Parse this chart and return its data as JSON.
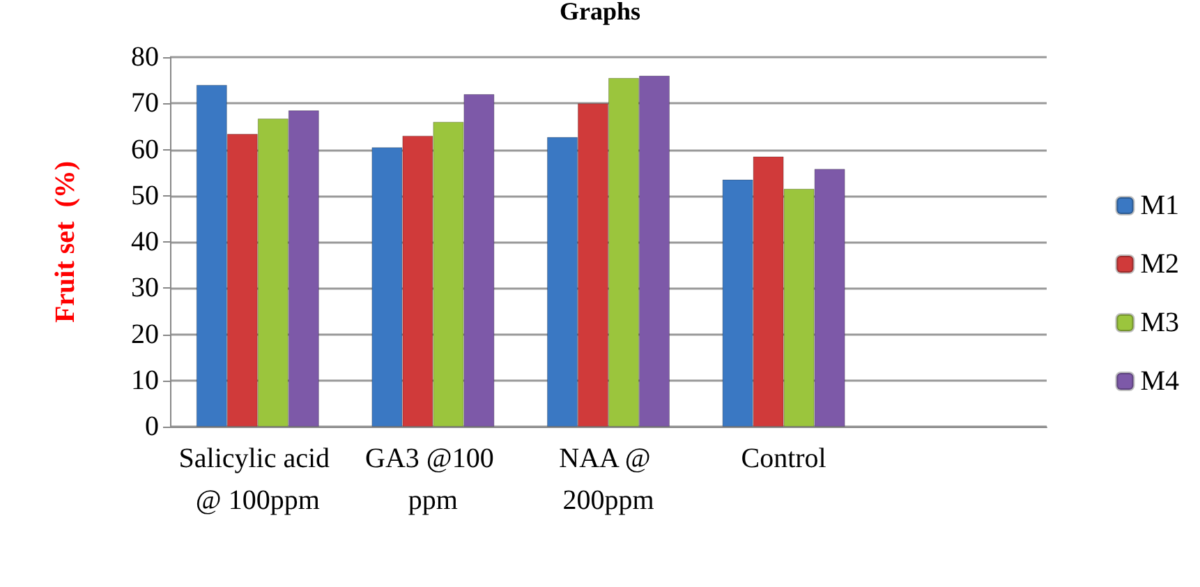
{
  "chart_data": {
    "type": "bar",
    "title": "Graphs",
    "ylabel": "Fruit set  (%)",
    "categories": [
      "Salicylic acid @ 100ppm",
      "GA3 @100 ppm",
      "NAA @ 200ppm",
      "Control",
      null
    ],
    "series": [
      {
        "name": "M1",
        "color": "#3a78c3",
        "values": [
          74,
          60.5,
          62.7,
          53.5,
          null
        ]
      },
      {
        "name": "M2",
        "color": "#d03a3a",
        "values": [
          63.4,
          63,
          70,
          58.5,
          null
        ]
      },
      {
        "name": "M3",
        "color": "#9bc53d",
        "values": [
          66.7,
          66,
          75.5,
          51.5,
          null
        ]
      },
      {
        "name": "M4",
        "color": "#7d59a8",
        "values": [
          68.5,
          72,
          76,
          55.8,
          null
        ]
      }
    ],
    "ylim": [
      0,
      80
    ],
    "yticks": [
      0,
      10,
      20,
      30,
      40,
      50,
      60,
      70,
      80
    ],
    "grid": "y",
    "legend": "right"
  }
}
